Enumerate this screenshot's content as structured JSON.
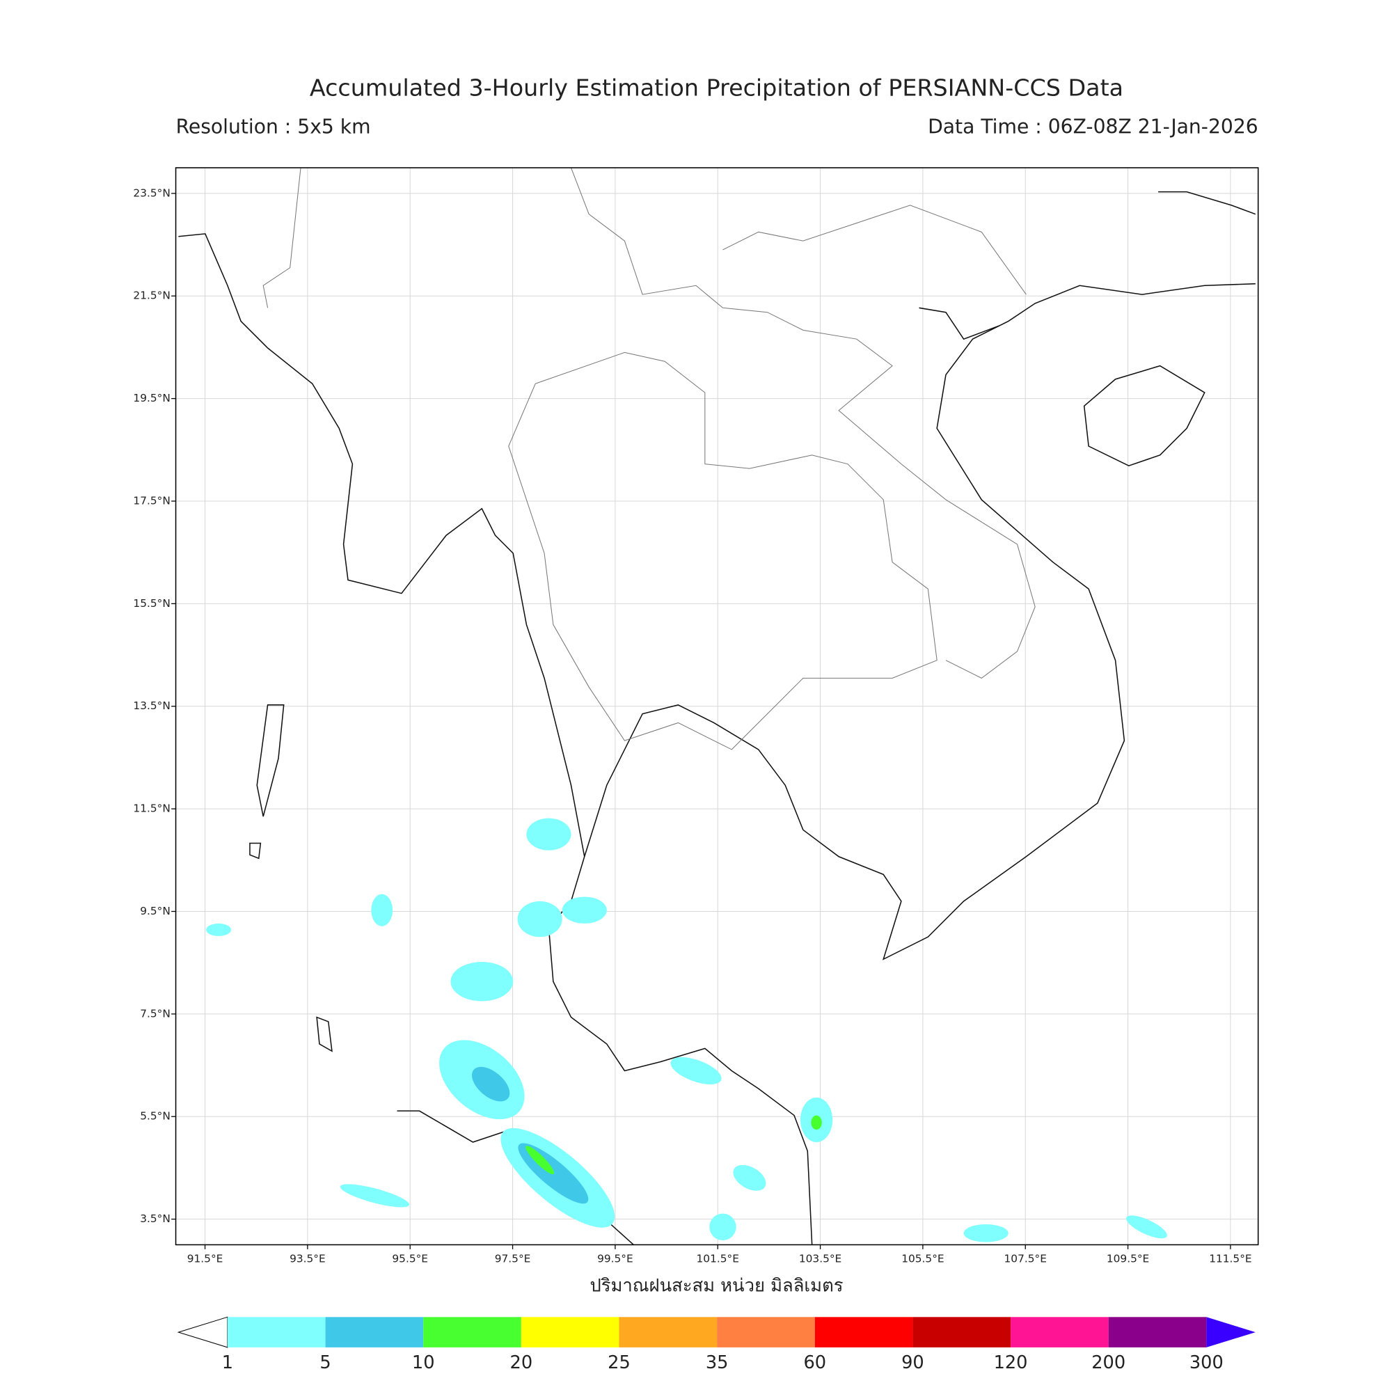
{
  "header": {
    "title": "Accumulated 3-Hourly Estimation Precipitation of PERSIANN-CCS Data",
    "resolution": "Resolution : 5x5 km",
    "data_time": "Data Time : 06Z-08Z 21-Jan-2026"
  },
  "map": {
    "lon_range": [
      90.93,
      112.04
    ],
    "lat_range": [
      3.0,
      24.0
    ],
    "lon_ticks": [
      {
        "value": 91.5,
        "label": "91.5°E"
      },
      {
        "value": 93.5,
        "label": "93.5°E"
      },
      {
        "value": 95.5,
        "label": "95.5°E"
      },
      {
        "value": 97.5,
        "label": "97.5°E"
      },
      {
        "value": 99.5,
        "label": "99.5°E"
      },
      {
        "value": 101.5,
        "label": "101.5°E"
      },
      {
        "value": 103.5,
        "label": "103.5°E"
      },
      {
        "value": 105.5,
        "label": "105.5°E"
      },
      {
        "value": 107.5,
        "label": "107.5°E"
      },
      {
        "value": 109.5,
        "label": "109.5°E"
      },
      {
        "value": 111.5,
        "label": "111.5°E"
      }
    ],
    "lat_ticks": [
      {
        "value": 23.5,
        "label": "23.5°N"
      },
      {
        "value": 21.5,
        "label": "21.5°N"
      },
      {
        "value": 19.5,
        "label": "19.5°N"
      },
      {
        "value": 17.5,
        "label": "17.5°N"
      },
      {
        "value": 15.5,
        "label": "15.5°N"
      },
      {
        "value": 13.5,
        "label": "13.5°N"
      },
      {
        "value": 11.5,
        "label": "11.5°N"
      },
      {
        "value": 9.5,
        "label": "9.5°N"
      },
      {
        "value": 7.5,
        "label": "7.5°N"
      },
      {
        "value": 5.5,
        "label": "5.5°N"
      },
      {
        "value": 3.5,
        "label": "3.5°N"
      }
    ],
    "x_label": "ปริมาณฝนสะสม หน่วย มิลลิเมตร"
  },
  "colorbar": {
    "levels": [
      1,
      5,
      10,
      20,
      25,
      35,
      60,
      90,
      120,
      200,
      300
    ],
    "colors": [
      "#80ffff",
      "#40c8e8",
      "#48ff30",
      "#ffff00",
      "#ffa820",
      "#ff8040",
      "#ff0000",
      "#c80000",
      "#ff1493",
      "#8b008b"
    ],
    "under_color": "#ffffff",
    "over_color": "#3a00ff"
  }
}
